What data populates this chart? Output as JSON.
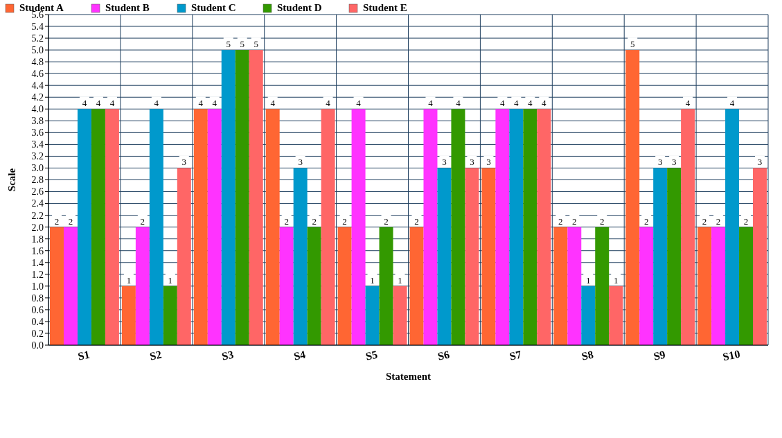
{
  "chart_data": {
    "type": "bar",
    "xlabel": "Statement",
    "ylabel": "Scale",
    "categories": [
      "S1",
      "S2",
      "S3",
      "S4",
      "S5",
      "S6",
      "S7",
      "S8",
      "S9",
      "S10"
    ],
    "series": [
      {
        "name": "Student A",
        "color": "#ff6633",
        "values": [
          2,
          1,
          4,
          4,
          2,
          2,
          3,
          2,
          5,
          2
        ]
      },
      {
        "name": "Student B",
        "color": "#ff33ff",
        "values": [
          2,
          2,
          4,
          2,
          4,
          4,
          4,
          2,
          2,
          2
        ]
      },
      {
        "name": "Student C",
        "color": "#0099cc",
        "values": [
          4,
          4,
          5,
          3,
          1,
          3,
          4,
          1,
          3,
          4
        ]
      },
      {
        "name": "Student D",
        "color": "#339900",
        "values": [
          4,
          1,
          5,
          2,
          2,
          4,
          4,
          2,
          3,
          2
        ]
      },
      {
        "name": "Student E",
        "color": "#ff6666",
        "values": [
          4,
          3,
          5,
          4,
          1,
          3,
          4,
          1,
          4,
          3
        ]
      }
    ],
    "ylim": [
      0,
      5.6
    ],
    "yticks": [
      {
        "value": 0,
        "label": "0.0"
      },
      {
        "value": 0.2,
        "label": "0.2"
      },
      {
        "value": 0.4,
        "label": "0.4"
      },
      {
        "value": 0.6,
        "label": "0.6"
      },
      {
        "value": 0.8,
        "label": "0.8"
      },
      {
        "value": 1,
        "label": "1.0"
      },
      {
        "value": 1.2,
        "label": "1.2"
      },
      {
        "value": 1.4,
        "label": "1.4"
      },
      {
        "value": 1.6,
        "label": "1.6"
      },
      {
        "value": 1.8,
        "label": "1.8"
      },
      {
        "value": 2,
        "label": "2.0"
      },
      {
        "value": 2.2,
        "label": "2.2"
      },
      {
        "value": 2.4,
        "label": "2.4"
      },
      {
        "value": 2.6,
        "label": "2.6"
      },
      {
        "value": 2.8,
        "label": "2.8"
      },
      {
        "value": 3,
        "label": "3.0"
      },
      {
        "value": 3.2,
        "label": "3.2"
      },
      {
        "value": 3.4,
        "label": "3.4"
      },
      {
        "value": 3.6,
        "label": "3.6"
      },
      {
        "value": 3.8,
        "label": "3.8"
      },
      {
        "value": 4,
        "label": "4.0"
      },
      {
        "value": 4.2,
        "label": "4.2"
      },
      {
        "value": 4.4,
        "label": "4.4"
      },
      {
        "value": 4.6,
        "label": "4.6"
      },
      {
        "value": 4.8,
        "label": "4.8"
      },
      {
        "value": 5,
        "label": "5.0"
      },
      {
        "value": 5.2,
        "label": "5.2"
      },
      {
        "value": 5.4,
        "label": "5.4"
      },
      {
        "value": 5.6,
        "label": "5.6"
      }
    ],
    "grid": true,
    "legend": "top left",
    "data_labels": true
  }
}
